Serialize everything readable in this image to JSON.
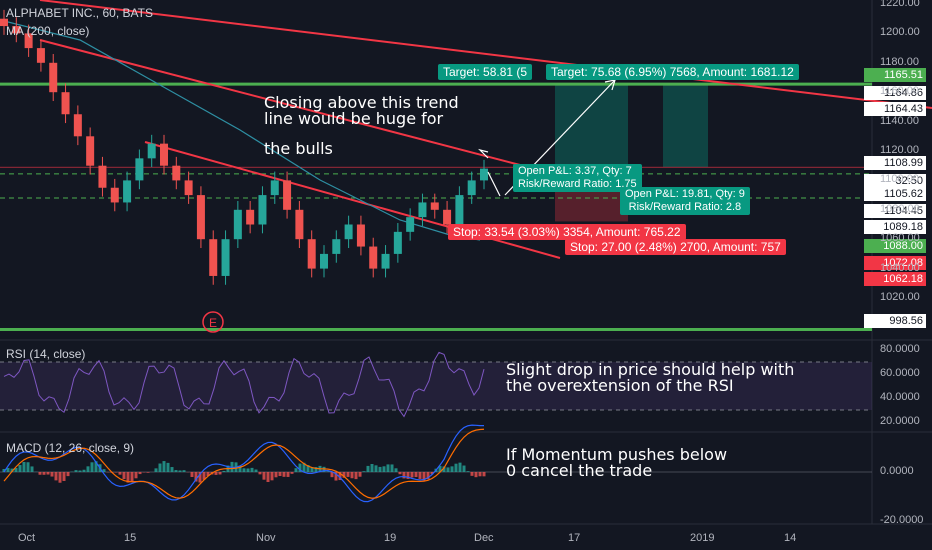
{
  "header": {
    "symbol": "ALPHABET INC., 60, BATS",
    "ma": "MA (200, close)"
  },
  "rsi_title": "RSI (14, close)",
  "macd_title": "MACD (12, 26, close, 9)",
  "event_marker": "E",
  "annotations": {
    "trend": [
      "Closing above this trend",
      "line would be huge for",
      "the bulls"
    ],
    "rsi": [
      "Slight drop in price should help with",
      "the overextension of the RSI"
    ],
    "macd": [
      "If Momentum pushes below",
      "0 cancel the trade"
    ]
  },
  "trade_labels": {
    "target1": "Target: 58.81 (5",
    "target2": "Target: 75.68 (6.95%) 7568, Amount: 1681.12",
    "open1": [
      "Open P&L: 3.37, Qty: 7",
      "Risk/Reward Ratio: 1.75"
    ],
    "open2": [
      "Open P&L: 19.81, Qty: 9",
      "Risk/Reward Ratio: 2.8"
    ],
    "stop1": "Stop: 33.54 (3.03%) 3354, Amount: 765.22",
    "stop2": "Stop: 27.00 (2.48%) 2700, Amount: 757"
  },
  "price_axis": {
    "ticks": [
      "1220.00",
      "1200.00",
      "1180.00",
      "1160.00",
      "1140.00",
      "1120.00",
      "1100.00",
      "1080.00",
      "1060.00",
      "1040.00",
      "1020.00"
    ],
    "tags": [
      {
        "text": "1165.51",
        "color": "#4caf50",
        "fg": "#ffffff"
      },
      {
        "text": "1164.86",
        "color": "#ffffff",
        "fg": "#131722"
      },
      {
        "text": "1164.43",
        "color": "#ffffff",
        "fg": "#131722"
      },
      {
        "text": "1108.99",
        "color": "#ffffff",
        "fg": "#131722"
      },
      {
        "text": "1",
        "color": "#ffffff",
        "fg": "#131722"
      },
      {
        "text": "32:50",
        "color": "#ffffff",
        "fg": "#131722"
      },
      {
        "text": "1105.62",
        "color": "#ffffff",
        "fg": "#131722"
      },
      {
        "text": "1104.45",
        "color": "#ffffff",
        "fg": "#131722"
      },
      {
        "text": "1089.18",
        "color": "#ffffff",
        "fg": "#131722"
      },
      {
        "text": "1088.00",
        "color": "#4caf50",
        "fg": "#ffffff"
      },
      {
        "text": "1072.08",
        "color": "#f23645",
        "fg": "#ffffff"
      },
      {
        "text": "1062.18",
        "color": "#f23645",
        "fg": "#ffffff"
      },
      {
        "text": "998.56",
        "color": "#ffffff",
        "fg": "#131722"
      }
    ]
  },
  "rsi_axis": {
    "ticks": [
      "80.0000",
      "60.0000",
      "40.0000",
      "20.0000"
    ]
  },
  "macd_axis": {
    "ticks": [
      "0.0000",
      "-20.0000"
    ]
  },
  "x_axis": {
    "ticks": [
      "Oct",
      "15",
      "Nov",
      "19",
      "Dec",
      "17",
      "2019",
      "14"
    ]
  },
  "chart_data": {
    "type": "line",
    "title": "ALPHABET INC., 60, BATS",
    "ylim": [
      998,
      1225
    ],
    "approx_close": [
      1205,
      1200,
      1190,
      1180,
      1160,
      1145,
      1130,
      1110,
      1095,
      1085,
      1100,
      1115,
      1125,
      1110,
      1100,
      1090,
      1060,
      1035,
      1060,
      1080,
      1070,
      1090,
      1100,
      1080,
      1060,
      1040,
      1050,
      1060,
      1070,
      1055,
      1040,
      1050,
      1065,
      1075,
      1085,
      1080,
      1070,
      1090,
      1100,
      1108
    ],
    "horizontal_lines": [
      1165.51,
      1104.45,
      998.56
    ],
    "rsi_levels": [
      70,
      30
    ],
    "colors": {
      "up": "#26a69a",
      "down": "#ef5350",
      "trend": "#f23645",
      "support": "#4caf50",
      "ma": "#2e8fa3"
    }
  }
}
